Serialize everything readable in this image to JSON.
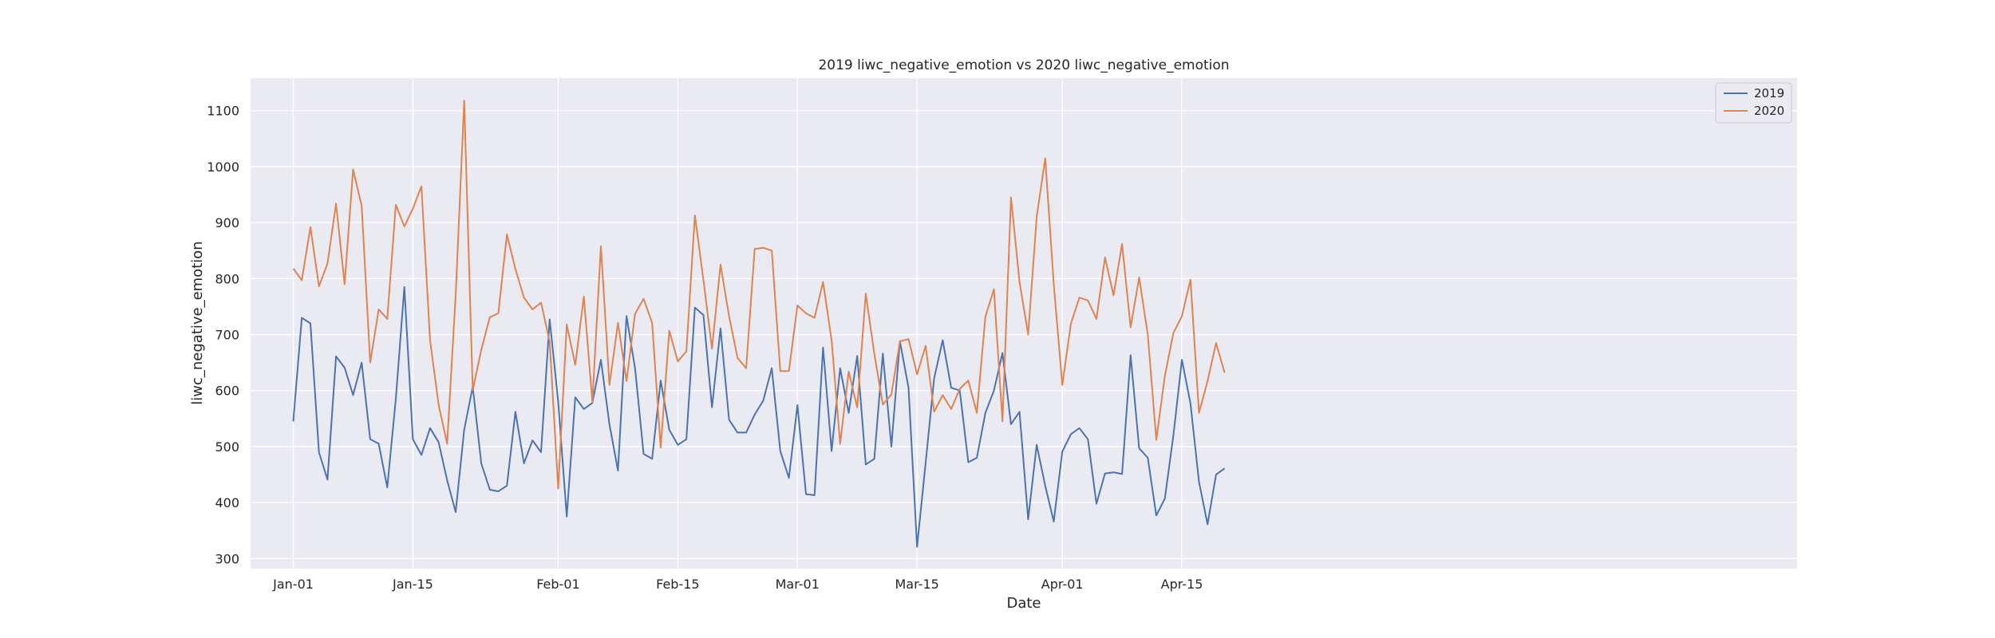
{
  "chart_data": {
    "type": "line",
    "title": "2019 liwc_negative_emotion vs 2020 liwc_negative_emotion",
    "xlabel": "Date",
    "ylabel": "liwc_negative_emotion",
    "x_start": "Jan-01",
    "x_tick_labels": [
      "Jan-01",
      "Jan-15",
      "Feb-01",
      "Feb-15",
      "Mar-01",
      "Mar-15",
      "Apr-01",
      "Apr-15"
    ],
    "y_tick_labels": [
      "300",
      "400",
      "500",
      "600",
      "700",
      "800",
      "900",
      "1000",
      "1100"
    ],
    "xlim": [
      "Dec-27",
      "Jun-26"
    ],
    "ylim": [
      282,
      1158
    ],
    "grid": true,
    "legend_position": "top-right",
    "series": [
      {
        "name": "2019",
        "color": "#4c72b0",
        "values": [
          545,
          730,
          720,
          490,
          441,
          661,
          641,
          592,
          650,
          513,
          505,
          427,
          585,
          785,
          513,
          485,
          533,
          508,
          440,
          383,
          530,
          607,
          470,
          423,
          420,
          430,
          562,
          470,
          511,
          490,
          727,
          580,
          375,
          588,
          567,
          578,
          655,
          540,
          457,
          733,
          640,
          487,
          478,
          618,
          530,
          503,
          513,
          748,
          735,
          570,
          711,
          548,
          525,
          525,
          557,
          582,
          640,
          492,
          444,
          574,
          415,
          413,
          677,
          492,
          640,
          560,
          662,
          468,
          478,
          666,
          500,
          688,
          605,
          321,
          470,
          622,
          690,
          605,
          600,
          472,
          480,
          560,
          600,
          667,
          540,
          562,
          370,
          503,
          430,
          366,
          491,
          522,
          533,
          513,
          398,
          452,
          454,
          451,
          663,
          497,
          480,
          377,
          407,
          520,
          655,
          577,
          437,
          361,
          450,
          461
        ]
      },
      {
        "name": "2020",
        "color": "#dd8452",
        "values": [
          818,
          797,
          892,
          786,
          827,
          934,
          790,
          995,
          930,
          650,
          745,
          728,
          932,
          893,
          925,
          965,
          690,
          575,
          505,
          770,
          1118,
          600,
          673,
          731,
          738,
          879,
          817,
          766,
          745,
          757,
          687,
          425,
          718,
          646,
          768,
          580,
          858,
          610,
          721,
          617,
          737,
          764,
          721,
          498,
          707,
          652,
          670,
          913,
          797,
          675,
          825,
          733,
          658,
          640,
          853,
          855,
          850,
          635,
          635,
          752,
          738,
          730,
          794,
          690,
          505,
          634,
          570,
          773,
          666,
          575,
          593,
          688,
          692,
          629,
          680,
          562,
          592,
          567,
          603,
          618,
          560,
          732,
          781,
          545,
          945,
          794,
          700,
          910,
          1015,
          790,
          610,
          719,
          766,
          761,
          728,
          838,
          770,
          862,
          713,
          802,
          700,
          512,
          626,
          703,
          733,
          798,
          560,
          617,
          685,
          632
        ]
      }
    ]
  }
}
